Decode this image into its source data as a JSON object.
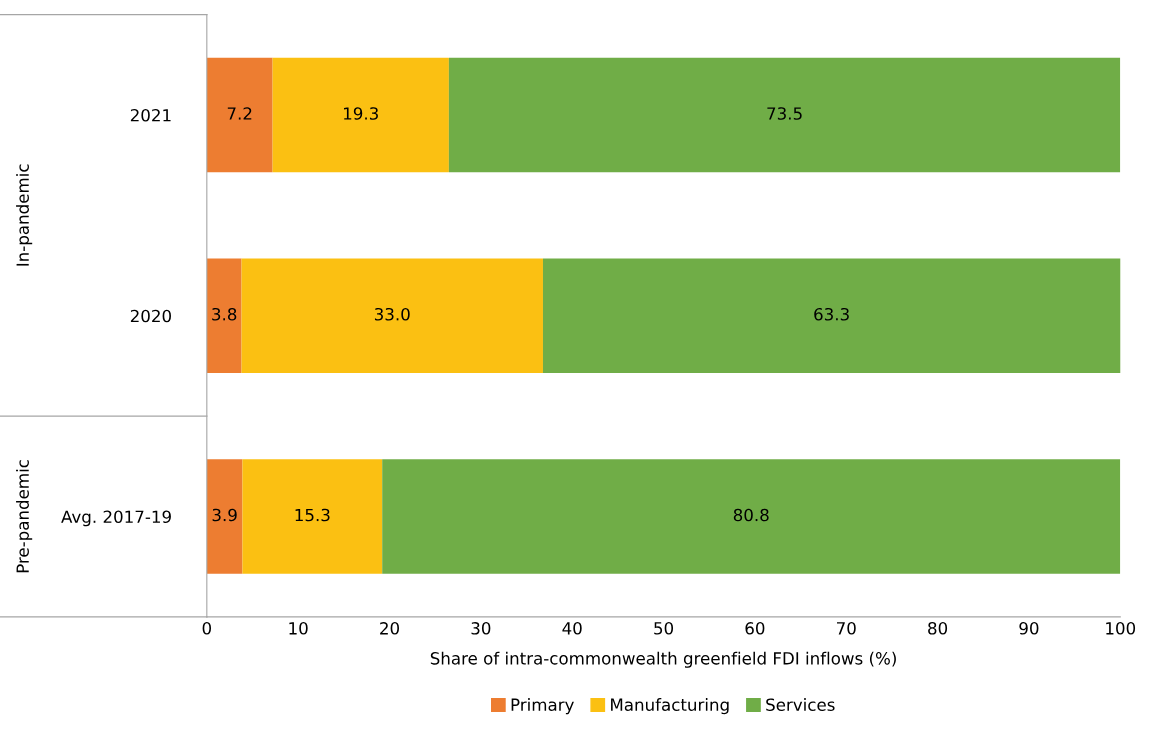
{
  "chart_data": {
    "type": "bar",
    "orientation": "horizontal",
    "stacked": true,
    "categories": [
      "2021",
      "2020",
      "Avg. 2017-19"
    ],
    "series": [
      {
        "name": "Primary",
        "color": "#ed7d31",
        "values": [
          7.2,
          3.8,
          3.9
        ],
        "value_labels": [
          "7.2",
          "3.8",
          "3.9"
        ]
      },
      {
        "name": "Manufacturing",
        "color": "#fbc012",
        "values": [
          19.3,
          33.0,
          15.3
        ],
        "value_labels": [
          "19.3",
          "33.0",
          "15.3"
        ]
      },
      {
        "name": "Services",
        "color": "#70ad47",
        "values": [
          73.5,
          63.3,
          80.8
        ],
        "value_labels": [
          "73.5",
          "63.3",
          "80.8"
        ]
      }
    ],
    "xlabel": "Share of intra-commonwealth greenfield FDI inflows (%)",
    "xlim": [
      0,
      100
    ],
    "xticks": [
      0,
      10,
      20,
      30,
      40,
      50,
      60,
      70,
      80,
      90,
      100
    ],
    "annotations": [
      "In-pandemic",
      "Pre-pandemic"
    ],
    "legend": "bottom",
    "grid": false
  }
}
